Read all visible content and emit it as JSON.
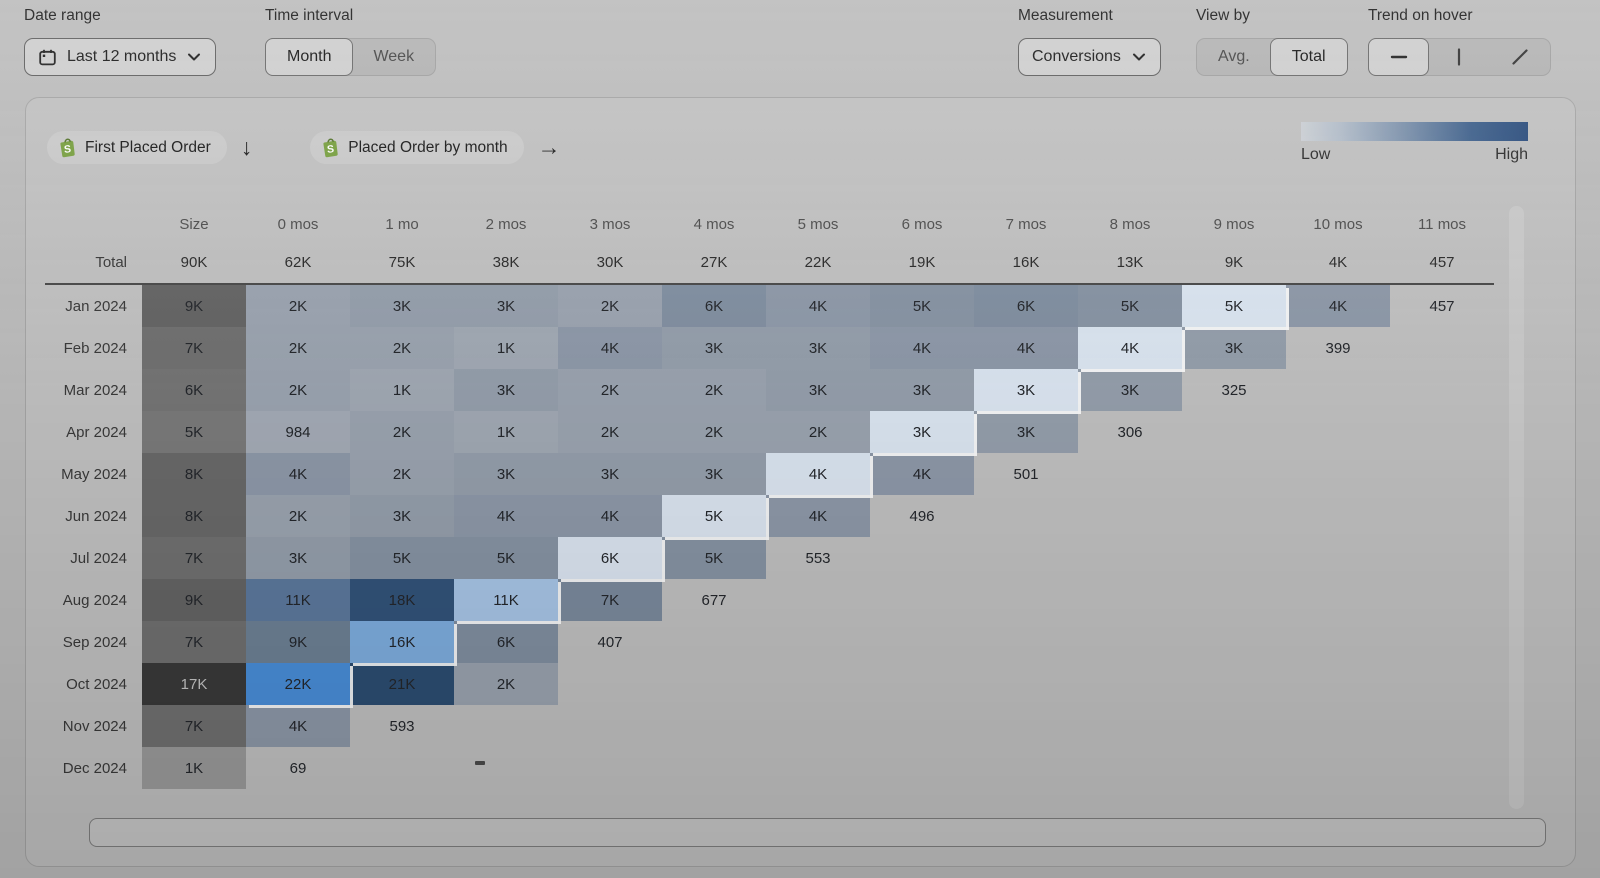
{
  "controls": {
    "date_range": {
      "label": "Date range",
      "value": "Last 12 months"
    },
    "time_interval": {
      "label": "Time interval",
      "options": [
        "Month",
        "Week"
      ],
      "selected": "Month"
    },
    "measurement": {
      "label": "Measurement",
      "value": "Conversions"
    },
    "view_by": {
      "label": "View by",
      "options": [
        "Avg.",
        "Total"
      ],
      "selected": "Total"
    },
    "trend_on_hover": {
      "label": "Trend on hover",
      "options": [
        "horizontal-line",
        "vertical-line",
        "diagonal-line"
      ],
      "selected": "horizontal-line"
    }
  },
  "breakdown": {
    "first_event": "First Placed Order",
    "second_event": "Placed Order by month"
  },
  "legend": {
    "low_label": "Low",
    "high_label": "High",
    "gradient_from": "#cdd1d6",
    "gradient_to": "#2c4e7e"
  },
  "chart_data": {
    "type": "heatmap",
    "title": "First Placed Order → Placed Order by month, conversions by cohort",
    "columns": [
      "Size",
      "0 mos",
      "1 mo",
      "2 mos",
      "3 mos",
      "4 mos",
      "5 mos",
      "6 mos",
      "7 mos",
      "8 mos",
      "9 mos",
      "10 mos",
      "11 mos"
    ],
    "total_row": {
      "label": "Total",
      "size": "90K",
      "values": [
        "62K",
        "75K",
        "38K",
        "30K",
        "27K",
        "22K",
        "19K",
        "16K",
        "13K",
        "9K",
        "4K",
        "457"
      ]
    },
    "empty_value_dash": "-",
    "rows": [
      {
        "label": "Jan 2024",
        "size": {
          "v": "9K",
          "c": "#656565"
        },
        "cells": [
          {
            "v": "2K",
            "c": "#9ca5b1"
          },
          {
            "v": "3K",
            "c": "#96a0ad"
          },
          {
            "v": "3K",
            "c": "#96a0ad"
          },
          {
            "v": "2K",
            "c": "#9ca5b1"
          },
          {
            "v": "6K",
            "c": "#8290a2"
          },
          {
            "v": "4K",
            "c": "#8f9aaa"
          },
          {
            "v": "5K",
            "c": "#8895a5"
          },
          {
            "v": "6K",
            "c": "#8290a2"
          },
          {
            "v": "5K",
            "c": "#8895a5"
          },
          {
            "v": "5K",
            "c": "#dde7f3",
            "hl": true
          },
          {
            "v": "4K",
            "c": "#8f9aaa"
          },
          {
            "v": "457"
          }
        ]
      },
      {
        "label": "Feb 2024",
        "size": {
          "v": "7K",
          "c": "#717171"
        },
        "cells": [
          {
            "v": "2K",
            "c": "#9ca5b1"
          },
          {
            "v": "2K",
            "c": "#9ca5b1"
          },
          {
            "v": "1K",
            "c": "#a2aab5"
          },
          {
            "v": "4K",
            "c": "#8f9aaa"
          },
          {
            "v": "3K",
            "c": "#96a0ad"
          },
          {
            "v": "3K",
            "c": "#96a0ad"
          },
          {
            "v": "4K",
            "c": "#8f9aaa"
          },
          {
            "v": "4K",
            "c": "#8f9aaa"
          },
          {
            "v": "4K",
            "c": "#dde7f3",
            "hl": true
          },
          {
            "v": "3K",
            "c": "#96a0ad"
          },
          {
            "v": "399"
          }
        ]
      },
      {
        "label": "Mar 2024",
        "size": {
          "v": "6K",
          "c": "#767676"
        },
        "cells": [
          {
            "v": "2K",
            "c": "#9ca5b1"
          },
          {
            "v": "1K",
            "c": "#a2aab5"
          },
          {
            "v": "3K",
            "c": "#96a0ad"
          },
          {
            "v": "2K",
            "c": "#9ca5b1"
          },
          {
            "v": "2K",
            "c": "#9ca5b1"
          },
          {
            "v": "3K",
            "c": "#96a0ad"
          },
          {
            "v": "3K",
            "c": "#96a0ad"
          },
          {
            "v": "3K",
            "c": "#dde7f3",
            "hl": true
          },
          {
            "v": "3K",
            "c": "#96a0ad"
          },
          {
            "v": "325"
          }
        ]
      },
      {
        "label": "Apr 2024",
        "size": {
          "v": "5K",
          "c": "#7b7b7b"
        },
        "cells": [
          {
            "v": "984",
            "c": "#a5acb7"
          },
          {
            "v": "2K",
            "c": "#9ca5b1"
          },
          {
            "v": "1K",
            "c": "#a2aab5"
          },
          {
            "v": "2K",
            "c": "#9ca5b1"
          },
          {
            "v": "2K",
            "c": "#9ca5b1"
          },
          {
            "v": "2K",
            "c": "#9ca5b1"
          },
          {
            "v": "3K",
            "c": "#dde7f3",
            "hl": true
          },
          {
            "v": "3K",
            "c": "#96a0ad"
          },
          {
            "v": "306"
          }
        ]
      },
      {
        "label": "May 2024",
        "size": {
          "v": "8K",
          "c": "#6a6a6a"
        },
        "cells": [
          {
            "v": "4K",
            "c": "#8f9aaa"
          },
          {
            "v": "2K",
            "c": "#9ca5b1"
          },
          {
            "v": "3K",
            "c": "#96a0ad"
          },
          {
            "v": "3K",
            "c": "#96a0ad"
          },
          {
            "v": "3K",
            "c": "#96a0ad"
          },
          {
            "v": "4K",
            "c": "#dde7f3",
            "hl": true
          },
          {
            "v": "4K",
            "c": "#8f9aaa"
          },
          {
            "v": "501"
          }
        ]
      },
      {
        "label": "Jun 2024",
        "size": {
          "v": "8K",
          "c": "#6a6a6a"
        },
        "cells": [
          {
            "v": "2K",
            "c": "#9ca5b1"
          },
          {
            "v": "3K",
            "c": "#96a0ad"
          },
          {
            "v": "4K",
            "c": "#8f9aaa"
          },
          {
            "v": "4K",
            "c": "#8f9aaa"
          },
          {
            "v": "5K",
            "c": "#dde7f3",
            "hl": true
          },
          {
            "v": "4K",
            "c": "#8f9aaa"
          },
          {
            "v": "496"
          }
        ]
      },
      {
        "label": "Jul 2024",
        "size": {
          "v": "7K",
          "c": "#717171"
        },
        "cells": [
          {
            "v": "3K",
            "c": "#96a0ad"
          },
          {
            "v": "5K",
            "c": "#8895a5"
          },
          {
            "v": "5K",
            "c": "#8895a5"
          },
          {
            "v": "6K",
            "c": "#dde7f3",
            "hl": true
          },
          {
            "v": "5K",
            "c": "#8895a5"
          },
          {
            "v": "553"
          }
        ]
      },
      {
        "label": "Aug 2024",
        "size": {
          "v": "9K",
          "c": "#656565"
        },
        "cells": [
          {
            "v": "11K",
            "c": "#5d7a9e"
          },
          {
            "v": "18K",
            "c": "#33547b"
          },
          {
            "v": "11K",
            "c": "#a9c7e9",
            "hl": true
          },
          {
            "v": "7K",
            "c": "#7c8b9e"
          },
          {
            "v": "677"
          }
        ]
      },
      {
        "label": "Sep 2024",
        "size": {
          "v": "7K",
          "c": "#717171"
        },
        "cells": [
          {
            "v": "9K",
            "c": "#6e8296"
          },
          {
            "v": "16K",
            "c": "#7fafe1",
            "hl": true
          },
          {
            "v": "6K",
            "c": "#8290a2"
          },
          {
            "v": "407"
          }
        ]
      },
      {
        "label": "Oct 2024",
        "size": {
          "v": "17K",
          "c": "#3a3a3a",
          "t": "#c6c6c6"
        },
        "cells": [
          {
            "v": "22K",
            "c": "#4a8fdb",
            "hl": true
          },
          {
            "v": "21K",
            "c": "#2d4e73"
          },
          {
            "v": "2K",
            "c": "#9ca5b1"
          }
        ]
      },
      {
        "label": "Nov 2024",
        "size": {
          "v": "7K",
          "c": "#717171"
        },
        "cells": [
          {
            "v": "4K",
            "c": "#8f9aaa"
          },
          {
            "v": "593"
          }
        ]
      },
      {
        "label": "Dec 2024",
        "size": {
          "v": "1K",
          "c": "#9c9c9c"
        },
        "cells": [
          {
            "v": "69"
          }
        ]
      }
    ]
  }
}
